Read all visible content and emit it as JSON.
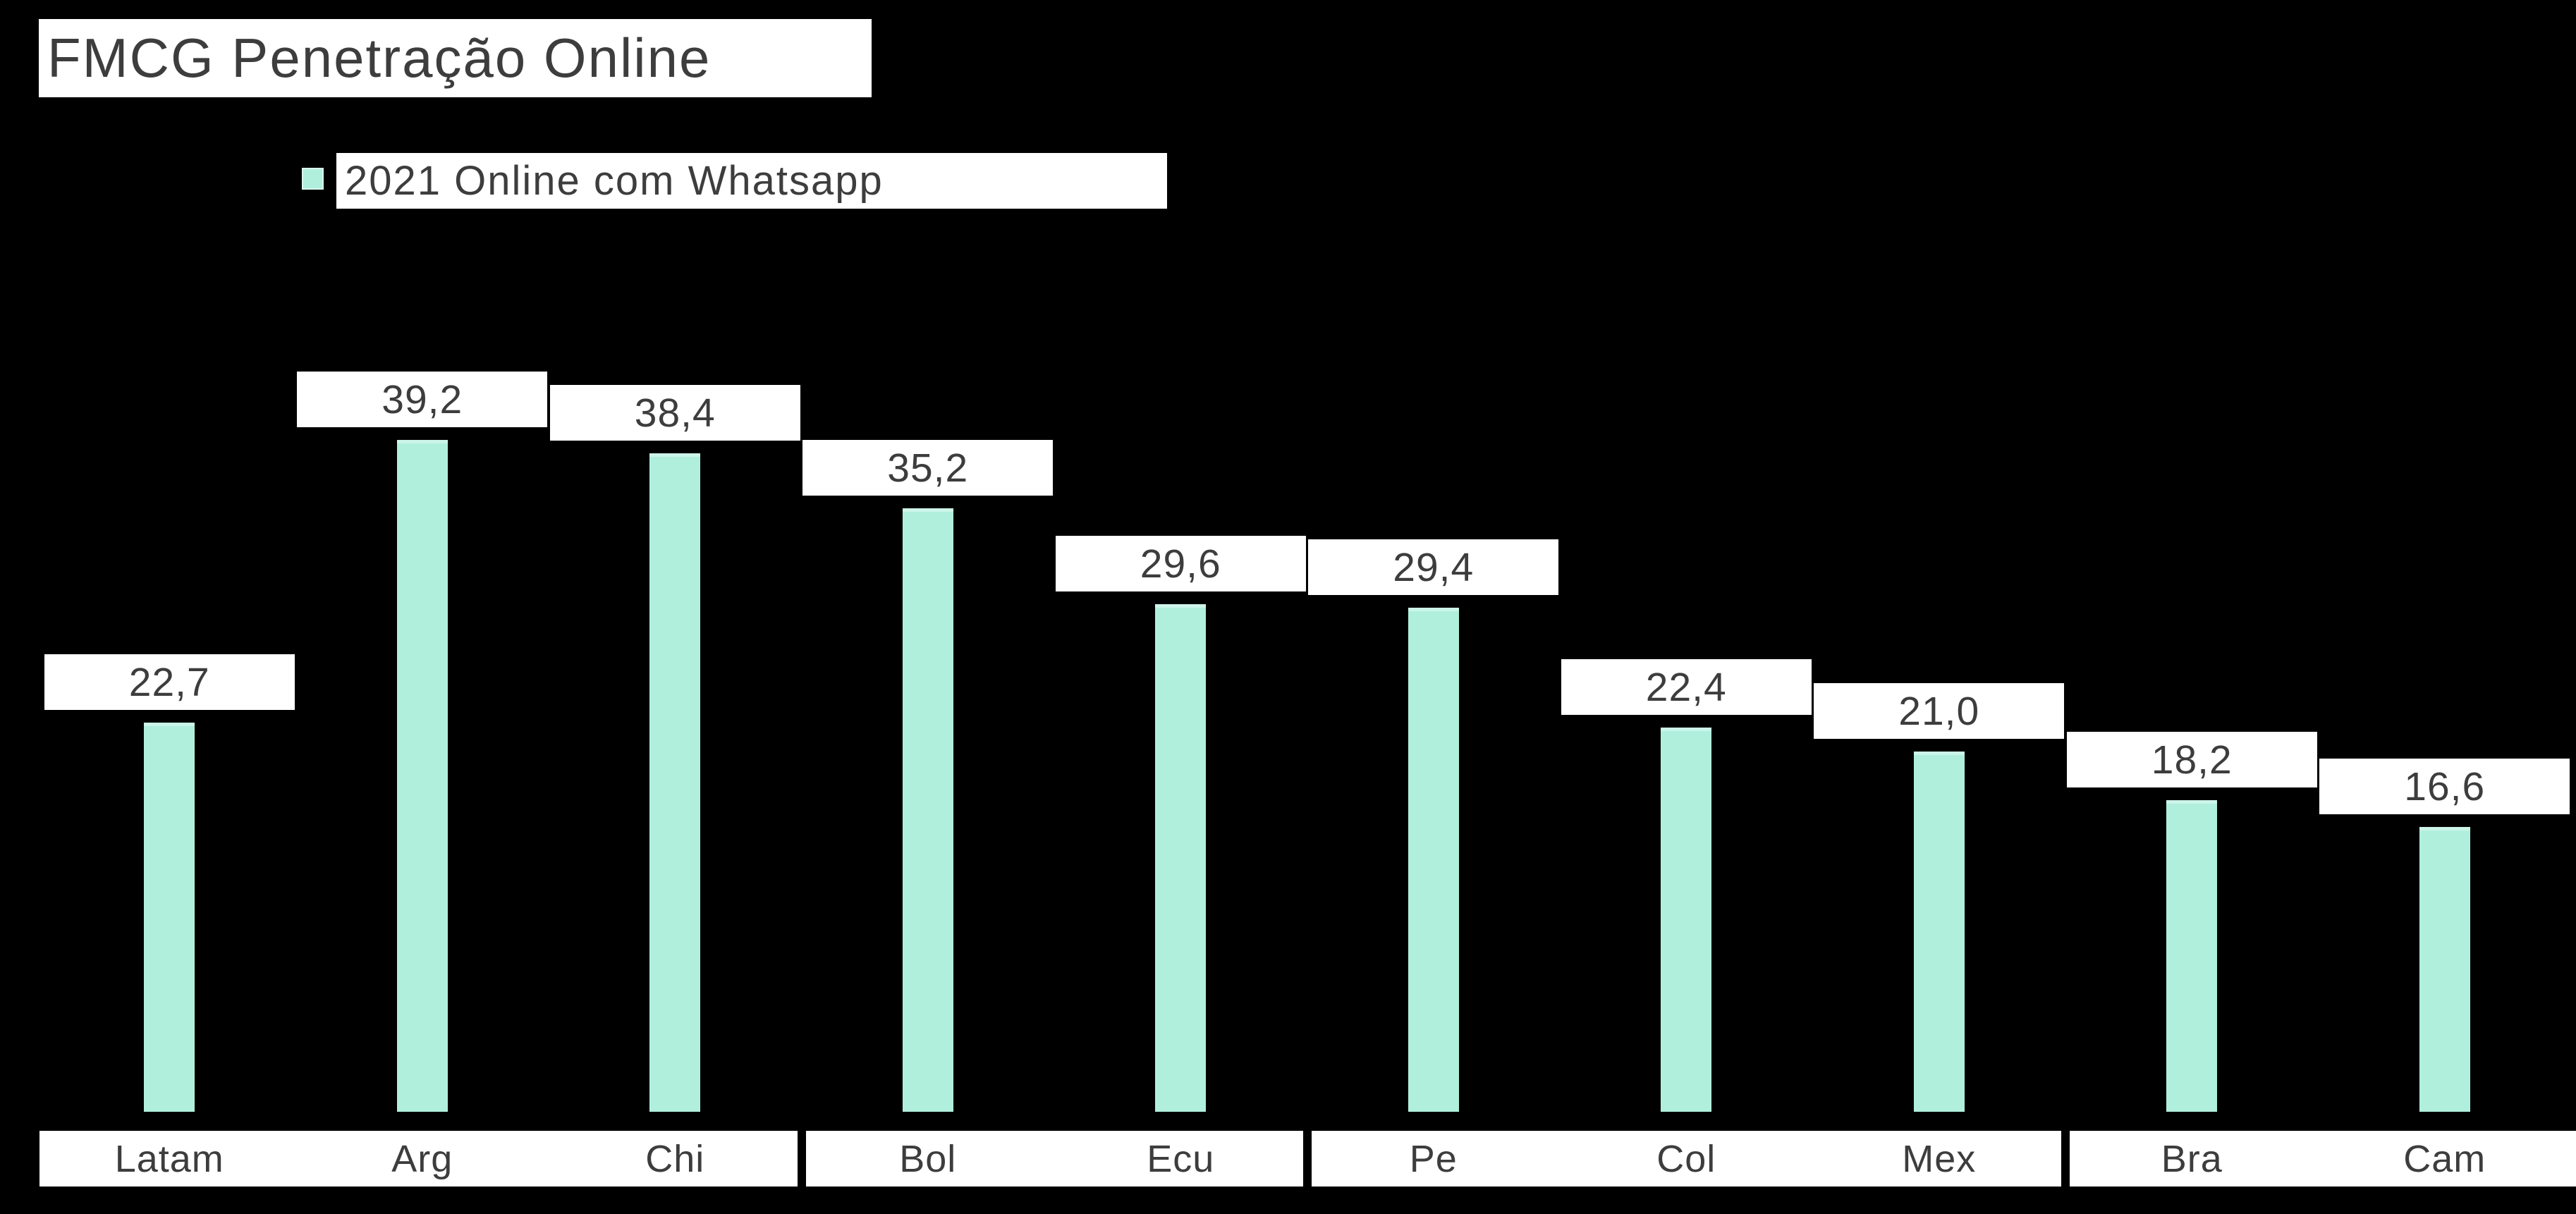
{
  "title": {
    "text": "FMCG Penetração Online"
  },
  "legend": {
    "label": "2021 Online com Whatsapp",
    "marker_color": "#b0efdc",
    "position": "top-left"
  },
  "colors": {
    "background": "#000000",
    "bar": "#b0efdc",
    "bar_highlight": "#ccf5e9",
    "text": "#3d3d3d",
    "box_background": "#ffffff"
  },
  "chart_data": {
    "type": "bar",
    "title": "FMCG Penetração Online",
    "categories": [
      "Latam",
      "Arg",
      "Chi",
      "Bol",
      "Ecu",
      "Pe",
      "Col",
      "Mex",
      "Bra",
      "Cam"
    ],
    "series": [
      {
        "name": "2021 Online com Whatsapp",
        "values": [
          22.7,
          39.2,
          38.4,
          35.2,
          29.6,
          29.4,
          22.4,
          21.0,
          18.2,
          16.6
        ]
      }
    ],
    "value_labels": [
      "22,7",
      "39,2",
      "38,4",
      "35,2",
      "29,6",
      "29,4",
      "22,4",
      "21,0",
      "18,2",
      "16,6"
    ],
    "xlabel": "",
    "ylabel": "",
    "ylim": [
      0,
      40
    ],
    "grid": false,
    "legend_position": "top-left",
    "bar_color": "#b0efdc",
    "axis_label_groups": [
      [
        0,
        1,
        2
      ],
      [
        3,
        4
      ],
      [
        5,
        6,
        7
      ],
      [
        8,
        9
      ]
    ]
  }
}
